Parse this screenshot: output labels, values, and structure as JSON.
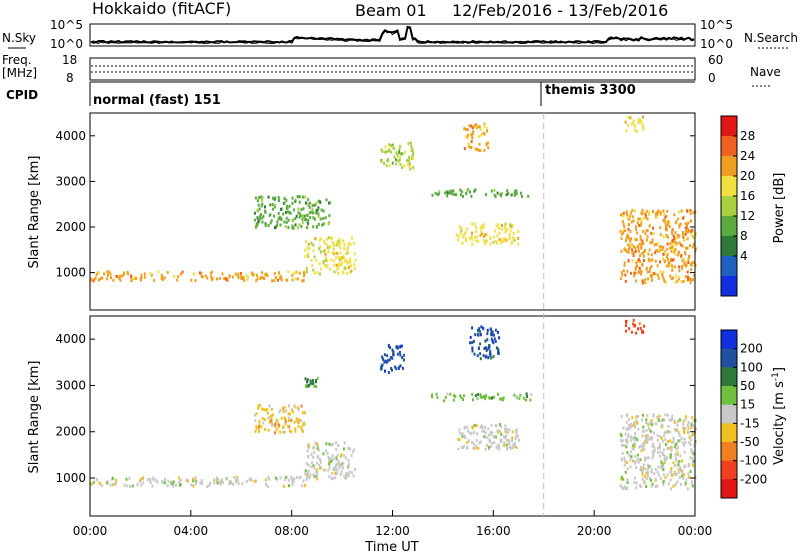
{
  "header": {
    "station": "Hokkaido (fitACF)",
    "beam": "Beam 01",
    "date_range": "12/Feb/2016 - 13/Feb/2016"
  },
  "noise_panel": {
    "left_label": "N.Sky",
    "right_label": "N.Search",
    "left_top_tick": "10^5",
    "left_bottom_tick": "10^0",
    "right_top_tick": "10^5",
    "right_bottom_tick": "10^0"
  },
  "freq_panel": {
    "left_label_1": "Freq.",
    "left_label_2": "[MHz]",
    "right_label": "Nave",
    "left_top_tick": "18",
    "left_bottom_tick": "8",
    "right_top_tick": "60",
    "right_bottom_tick": "0"
  },
  "cpid_panel": {
    "label": "CPID",
    "mode_1": "normal (fast) 151",
    "mode_2": "themis 3300"
  },
  "chart_data": [
    {
      "type": "heatmap",
      "quantity": "Power",
      "ylabel": "Slant Range [km]",
      "colorbar_label": "Power [dB]",
      "colorbar_ticks": [
        "4",
        "8",
        "12",
        "16",
        "20",
        "24",
        "28"
      ],
      "colorbar_colors": [
        "#1030e0",
        "#2060c0",
        "#2e7a3a",
        "#5aaa40",
        "#a8d040",
        "#f0e040",
        "#f0a020",
        "#f06020",
        "#e01818"
      ],
      "ylim": [
        180,
        4500
      ],
      "yticks": [
        1000,
        2000,
        3000,
        4000
      ],
      "xlim_hours": [
        0,
        24
      ],
      "scatter_regions": [
        {
          "t_start": 0.0,
          "t_end": 8.5,
          "range_start": 850,
          "range_end": 1050,
          "power_db": 22
        },
        {
          "t_start": 8.5,
          "t_end": 10.5,
          "range_start": 1000,
          "range_end": 1800,
          "power_db": 18
        },
        {
          "t_start": 6.5,
          "t_end": 9.5,
          "range_start": 2000,
          "range_end": 2700,
          "power_db": 14
        },
        {
          "t_start": 13.5,
          "t_end": 17.5,
          "range_start": 2700,
          "range_end": 2850,
          "power_db": 14
        },
        {
          "t_start": 14.5,
          "t_end": 17.0,
          "range_start": 1650,
          "range_end": 2100,
          "power_db": 20
        },
        {
          "t_start": 14.8,
          "t_end": 15.8,
          "range_start": 3700,
          "range_end": 4300,
          "power_db": 24
        },
        {
          "t_start": 21.0,
          "t_end": 24.0,
          "range_start": 800,
          "range_end": 2400,
          "power_db": 24
        },
        {
          "t_start": 21.2,
          "t_end": 22.0,
          "range_start": 4100,
          "range_end": 4450,
          "power_db": 20
        },
        {
          "t_start": 11.5,
          "t_end": 12.8,
          "range_start": 3300,
          "range_end": 3900,
          "power_db": 16
        }
      ]
    },
    {
      "type": "heatmap",
      "quantity": "Velocity",
      "ylabel": "Slant Range [km]",
      "xlabel": "Time UT",
      "colorbar_label": "Velocity [m s^-1]",
      "colorbar_ticks": [
        "200",
        "100",
        "50",
        "15",
        "-15",
        "-50",
        "-100",
        "-200"
      ],
      "colorbar_colors": [
        "#1030e0",
        "#2050a0",
        "#2e7a3a",
        "#70c040",
        "#c8c8c8",
        "#f0c020",
        "#f08020",
        "#f04020",
        "#e01818"
      ],
      "ylim": [
        180,
        4500
      ],
      "yticks": [
        1000,
        2000,
        3000,
        4000
      ],
      "xlim_hours": [
        0,
        24
      ],
      "xticks": [
        "00:00",
        "04:00",
        "08:00",
        "12:00",
        "16:00",
        "20:00",
        "00:00"
      ],
      "scatter_regions": [
        {
          "t_start": 0.0,
          "t_end": 8.5,
          "range_start": 850,
          "range_end": 1050,
          "velocity": 0
        },
        {
          "t_start": 8.5,
          "t_end": 10.5,
          "range_start": 1000,
          "range_end": 1800,
          "velocity": 0
        },
        {
          "t_start": 6.5,
          "t_end": 8.5,
          "range_start": 2000,
          "range_end": 2600,
          "velocity": -30
        },
        {
          "t_start": 13.5,
          "t_end": 17.5,
          "range_start": 2700,
          "range_end": 2850,
          "velocity": 30
        },
        {
          "t_start": 14.5,
          "t_end": 17.0,
          "range_start": 1650,
          "range_end": 2200,
          "velocity": 0
        },
        {
          "t_start": 15.0,
          "t_end": 16.2,
          "range_start": 3600,
          "range_end": 4300,
          "velocity": 180
        },
        {
          "t_start": 21.0,
          "t_end": 24.0,
          "range_start": 800,
          "range_end": 2400,
          "velocity": 0
        },
        {
          "t_start": 21.2,
          "t_end": 22.0,
          "range_start": 4150,
          "range_end": 4450,
          "velocity": -200
        },
        {
          "t_start": 11.5,
          "t_end": 12.5,
          "range_start": 3300,
          "range_end": 3900,
          "velocity": 180
        },
        {
          "t_start": 8.5,
          "t_end": 9.0,
          "range_start": 3000,
          "range_end": 3200,
          "velocity": 60
        }
      ],
      "gap_marker_hour": 18.0
    }
  ]
}
